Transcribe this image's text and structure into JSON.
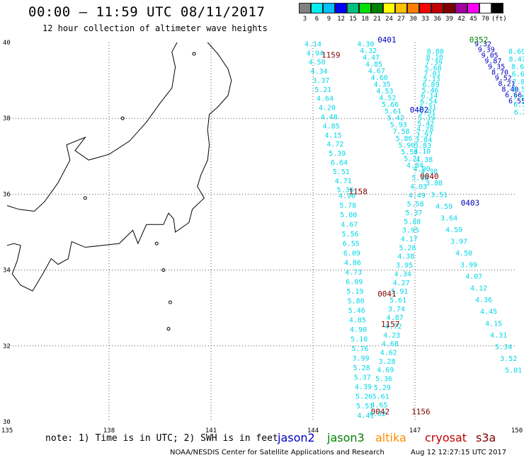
{
  "title": "00:00 – 11:59 UTC 08/11/2017",
  "subtitle": "12 hour collection of altimeter wave heights",
  "colorbar": {
    "swatches": [
      "#808080",
      "#00f0f0",
      "#00c0ff",
      "#0000ff",
      "#00c080",
      "#00e000",
      "#008000",
      "#ffff00",
      "#ffc000",
      "#ff8000",
      "#ff0000",
      "#c00000",
      "#800000",
      "#a000a0",
      "#ff00ff",
      "#ffffff",
      "#000000"
    ],
    "labels": [
      "3",
      "6",
      "9",
      "12",
      "15",
      "18",
      "21",
      "24",
      "27",
      "30",
      "33",
      "36",
      "39",
      "42",
      "45",
      "70",
      "(ft)"
    ]
  },
  "map": {
    "lon_range": [
      135,
      150
    ],
    "lat_range": [
      30,
      40
    ],
    "lon_ticks": [
      "135",
      "138",
      "141",
      "144",
      "147",
      "150"
    ],
    "lat_ticks": [
      "40",
      "38",
      "36",
      "34",
      "32",
      "30"
    ],
    "coast_color": "#000000",
    "grid": "dotted"
  },
  "passes": [
    {
      "id": "t1",
      "time_label": "1159",
      "time_color": "#800000",
      "color": "#00d8e8",
      "values": [
        "4.14",
        "4.94",
        "4.50",
        "4.34",
        "3.37",
        "5.21",
        "4.64",
        "4.20",
        "4.48",
        "4.85",
        "4.15",
        "4.72",
        "5.39",
        "6.64",
        "5.51",
        "4.71",
        "5.36"
      ]
    },
    {
      "id": "t2",
      "time_label": "1158",
      "time_color": "#800000",
      "color": "#00d8e8",
      "values": [
        "4.90",
        "5.78",
        "5.00",
        "4.67",
        "5.56",
        "6.55",
        "6.09",
        "4.86",
        "4.73",
        "6.09",
        "5.19",
        "5.80",
        "5.46",
        "4.85",
        "4.90",
        "5.10",
        "5.76",
        "3.99",
        "5.28",
        "5.37",
        "4.39",
        "5.26",
        "5.51",
        "4.41"
      ]
    },
    {
      "id": "t3",
      "time_label": "0042",
      "time_color": "#800000",
      "color": "#00d8e8",
      "values": [
        "4.30",
        "4.32",
        "4.47",
        "4.85",
        "4.67",
        "4.60",
        "4.35",
        "4.53",
        "4.52",
        "5.66",
        "5.61",
        "5.42",
        "5.93",
        "7.58",
        "5.86",
        "5.90",
        "5.53",
        "5.21",
        "4.84"
      ]
    },
    {
      "id": "t4",
      "time_label": "0041",
      "time_color": "#800000",
      "color": "#00d8e8",
      "values": [
        "4.90",
        "5.18",
        "4.03",
        "4.49",
        "5.58",
        "5.37",
        "5.88",
        "3.95",
        "4.17",
        "5.28",
        "4.38",
        "3.95",
        "4.34",
        "4.27",
        "5.91",
        "5.61",
        "3.74",
        "4.87",
        "4.72",
        "4.23",
        "4.68",
        "4.62",
        "3.28",
        "4.69",
        "5.36",
        "5.29",
        "5.61",
        "4.65",
        "4.62"
      ]
    },
    {
      "id": "t5",
      "time_label": "1157",
      "time_color": "#800000",
      "color": "#00d8e8",
      "values": [
        "8.80",
        "8.10",
        "7.39",
        "5.68",
        "7.01",
        "5.13",
        "6.89",
        "5.46",
        "6.14",
        "6.54",
        "6.31",
        "5.91",
        "5.39",
        "5.42",
        "4.28",
        "3.97",
        "3.84",
        "3.83",
        "4.10",
        "4.38",
        "4.30",
        "3.88",
        "3.51",
        "4.59",
        "3.64",
        "4.59",
        "3.97",
        "4.50",
        "3.99",
        "4.07",
        "4.12",
        "4.36",
        "4.45",
        "4.15",
        "4.31",
        "5.34",
        "3.52",
        "5.01"
      ]
    },
    {
      "id": "t6",
      "time_label": "0402",
      "time_color": "#0000c0",
      "color": "#00d8e8",
      "values": []
    },
    {
      "id": "t7",
      "time_label": "0403",
      "time_color": "#0000c0",
      "color": "#00d8e8",
      "values": []
    },
    {
      "id": "t8",
      "time_label": "0401",
      "time_color": "#0000c0",
      "color": "#0000c0",
      "values": [
        "9.32",
        "9.39",
        "9.05",
        "9.87",
        "9.35",
        "8.70",
        "9.52",
        "8.21",
        "8.40",
        "6.66",
        "6.55"
      ]
    },
    {
      "id": "t9",
      "time_label": "0352",
      "time_color": "#008000",
      "color": "#00d8e8",
      "values": [
        "8.69",
        "8.47",
        "8.6",
        "6.6",
        "7.8",
        "8.5",
        "7.0",
        "6.5",
        "6.2"
      ]
    },
    {
      "id": "t10",
      "time_label": "1156",
      "time_color": "#800000",
      "color": "#00d8e8",
      "values": []
    },
    {
      "id": "t11",
      "time_label": "0040",
      "time_color": "#800000",
      "color": "#00d8e8",
      "values": []
    }
  ],
  "footer": {
    "note": "note: 1) Time is in UTC; 2) SWH is in feet",
    "satellites": [
      {
        "name": "jason2",
        "color": "#0000c0"
      },
      {
        "name": "jason3",
        "color": "#008000"
      },
      {
        "name": "altika",
        "color": "#ff8c00"
      },
      {
        "name": "cryosat",
        "color": "#c00000"
      },
      {
        "name": "s3a",
        "color": "#800000"
      }
    ],
    "credit": "NOAA/NESDIS Center for Satellite Applications and Research",
    "stamp": "Aug 12 12:27:15 UTC 2017"
  }
}
